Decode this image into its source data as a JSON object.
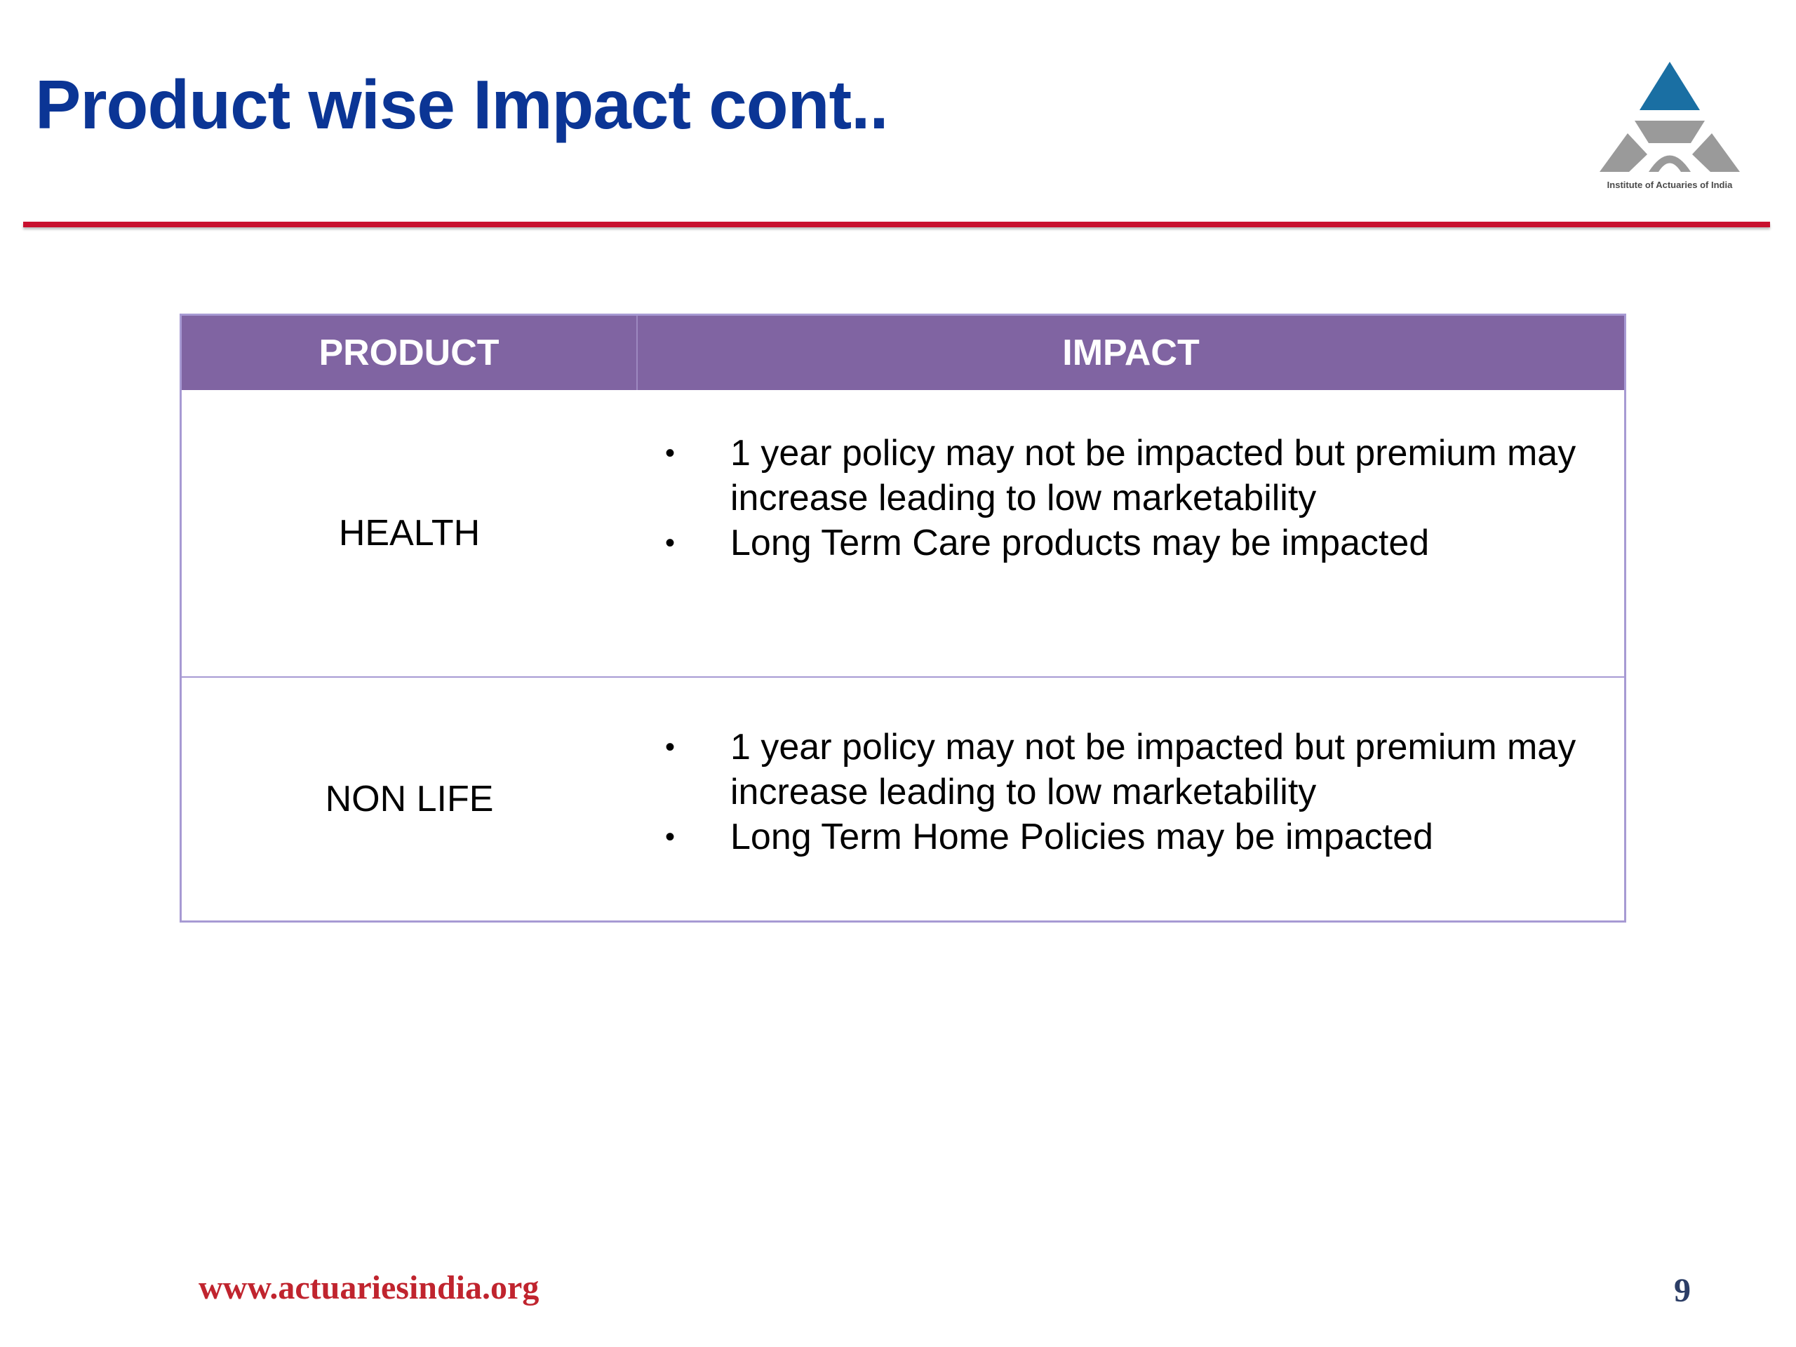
{
  "slide": {
    "title": "Product wise Impact cont.."
  },
  "logo": {
    "icon": "institute-of-actuaries-logo-icon",
    "caption": "Institute of Actuaries of India",
    "colors": {
      "top": "#1a6fa3",
      "base": "#9a9a9a"
    }
  },
  "table": {
    "headers": {
      "product": "PRODUCT",
      "impact": "IMPACT"
    },
    "rows": [
      {
        "product": "HEALTH",
        "impacts": [
          "1 year policy may not be impacted but premium may increase leading to low marketability",
          "Long Term Care products may be impacted"
        ]
      },
      {
        "product": "NON LIFE",
        "impacts": [
          "1 year policy may not be impacted but premium may increase leading to low marketability",
          "Long Term Home Policies may be impacted"
        ]
      }
    ]
  },
  "footer": {
    "url": "www.actuariesindia.org",
    "page_number": "9"
  },
  "colors": {
    "title": "#0b3595",
    "divider": "#c8102e",
    "table_header": "#8064a2",
    "table_border": "#a79ad3",
    "footer_url": "#c0242e"
  }
}
